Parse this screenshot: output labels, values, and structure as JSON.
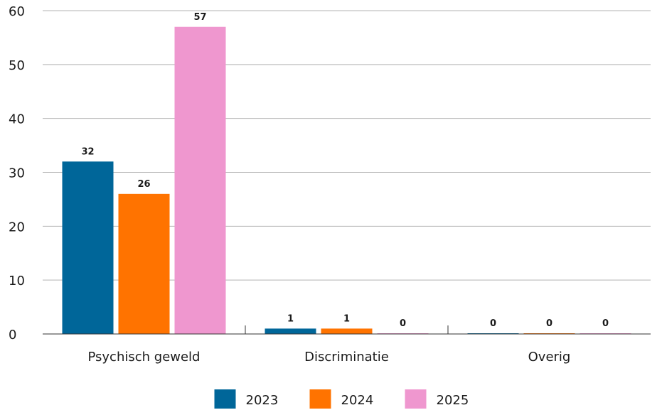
{
  "chart_data": {
    "type": "bar",
    "categories": [
      "Psychisch geweld",
      "Discriminatie",
      "Overig"
    ],
    "series": [
      {
        "name": "2023",
        "values": [
          32,
          1,
          0
        ],
        "color": "#006699"
      },
      {
        "name": "2024",
        "values": [
          26,
          1,
          0
        ],
        "color": "#ff7300"
      },
      {
        "name": "2025",
        "values": [
          57,
          0,
          0
        ],
        "color": "#ef97cf"
      }
    ],
    "yticks": [
      0,
      10,
      20,
      30,
      40,
      50,
      60
    ],
    "ylim": [
      0,
      60
    ],
    "grid": true,
    "legend": "bottom",
    "data_labels": true
  }
}
